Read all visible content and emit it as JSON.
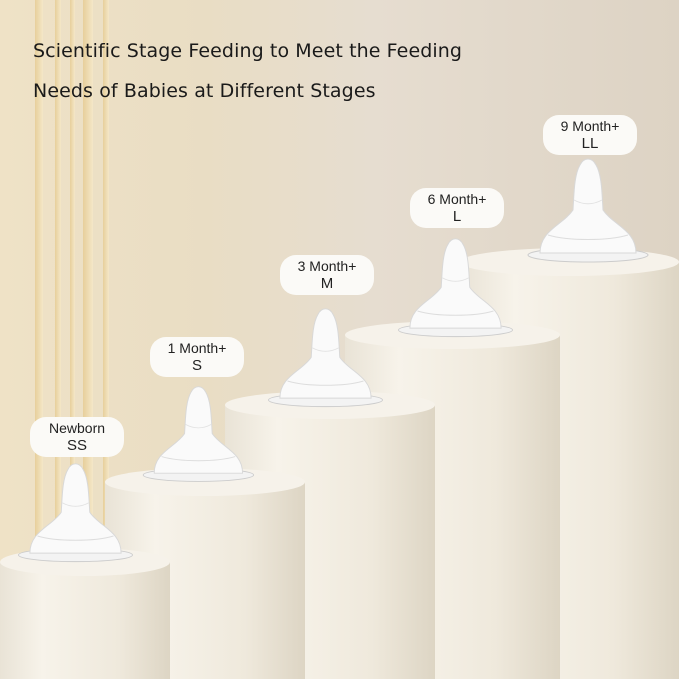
{
  "headline": {
    "line1": "Scientific Stage Feeding to Meet the Feeding",
    "line2": "Needs of Babies at Different Stages"
  },
  "stages": [
    {
      "age": "Newborn",
      "size": "SS"
    },
    {
      "age": "1 Month+",
      "size": "S"
    },
    {
      "age": "3 Month+",
      "size": "M"
    },
    {
      "age": "6 Month+",
      "size": "L"
    },
    {
      "age": "9 Month+",
      "size": "LL"
    }
  ],
  "colors": {
    "background": "#e9ddc4",
    "pillar": "#f4efe5",
    "text": "#1a1a1a"
  }
}
